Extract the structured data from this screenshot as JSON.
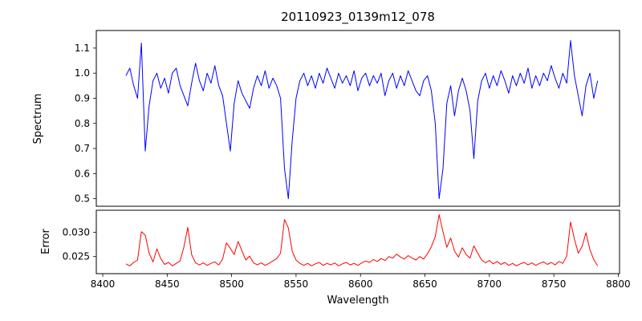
{
  "title": "20110923_0139m12_078",
  "colors": {
    "spectrum_line": "#0000ff",
    "error_line": "#ff0000",
    "axes": "#000000",
    "background": "#ffffff"
  },
  "chart_data": [
    {
      "type": "line",
      "name": "spectrum",
      "title": "20110923_0139m12_078",
      "ylabel": "Spectrum",
      "xlabel": "",
      "color": "#0000ff",
      "grid": false,
      "legend": "none",
      "xlim": [
        8395,
        8801
      ],
      "ylim": [
        0.47,
        1.17
      ],
      "yticks": [
        0.5,
        0.6,
        0.7,
        0.8,
        0.9,
        1.0,
        1.1
      ],
      "ytick_labels": [
        "0.5",
        "0.6",
        "0.7",
        "0.8",
        "0.9",
        "1.0",
        "1.1"
      ],
      "xticks": [],
      "xtick_labels": [],
      "x_start": 8418,
      "x_step": 3,
      "y": [
        0.99,
        1.02,
        0.95,
        0.9,
        1.12,
        0.69,
        0.87,
        0.97,
        1.0,
        0.94,
        0.98,
        0.92,
        1.0,
        1.02,
        0.95,
        0.91,
        0.87,
        0.96,
        1.04,
        0.97,
        0.93,
        1.0,
        0.96,
        1.03,
        0.95,
        0.91,
        0.8,
        0.69,
        0.88,
        0.97,
        0.92,
        0.89,
        0.86,
        0.94,
        0.99,
        0.95,
        1.01,
        0.94,
        0.98,
        0.95,
        0.9,
        0.62,
        0.5,
        0.73,
        0.9,
        0.97,
        1.0,
        0.95,
        0.99,
        0.94,
        1.0,
        0.96,
        1.02,
        0.98,
        0.94,
        1.0,
        0.96,
        0.99,
        0.95,
        1.01,
        0.93,
        0.98,
        1.0,
        0.95,
        0.99,
        0.96,
        1.0,
        0.91,
        0.97,
        1.0,
        0.94,
        0.99,
        0.95,
        1.01,
        0.97,
        0.93,
        0.91,
        0.97,
        0.99,
        0.93,
        0.8,
        0.5,
        0.62,
        0.88,
        0.95,
        0.83,
        0.93,
        0.98,
        0.93,
        0.85,
        0.66,
        0.89,
        0.97,
        1.0,
        0.94,
        0.99,
        0.95,
        1.01,
        0.97,
        0.92,
        0.99,
        0.95,
        1.0,
        0.96,
        1.02,
        0.94,
        0.99,
        0.95,
        1.0,
        0.97,
        1.03,
        0.98,
        0.94,
        1.0,
        0.96,
        1.13,
        0.99,
        0.91,
        0.83,
        0.95,
        1.0,
        0.9,
        0.97
      ]
    },
    {
      "type": "line",
      "name": "error",
      "ylabel": "Error",
      "xlabel": "Wavelength",
      "color": "#ff0000",
      "grid": false,
      "legend": "none",
      "xlim": [
        8395,
        8801
      ],
      "ylim": [
        0.0215,
        0.0345
      ],
      "yticks": [
        0.025,
        0.03
      ],
      "ytick_labels": [
        "0.025",
        "0.030"
      ],
      "xticks": [
        8400,
        8450,
        8500,
        8550,
        8600,
        8650,
        8700,
        8750,
        8800
      ],
      "xtick_labels": [
        "8400",
        "8450",
        "8500",
        "8550",
        "8600",
        "8650",
        "8700",
        "8750",
        "8800"
      ],
      "x_start": 8418,
      "x_step": 3,
      "y": [
        0.0235,
        0.0231,
        0.0238,
        0.0243,
        0.0301,
        0.0294,
        0.0257,
        0.0239,
        0.0266,
        0.0246,
        0.0234,
        0.0238,
        0.0231,
        0.0236,
        0.0241,
        0.027,
        0.031,
        0.0254,
        0.0237,
        0.0233,
        0.0237,
        0.0232,
        0.0236,
        0.0239,
        0.0233,
        0.0245,
        0.0278,
        0.0267,
        0.0254,
        0.0281,
        0.0262,
        0.0243,
        0.0251,
        0.0237,
        0.0233,
        0.0237,
        0.0232,
        0.0236,
        0.0241,
        0.0246,
        0.0257,
        0.0326,
        0.0309,
        0.0261,
        0.0243,
        0.0236,
        0.0232,
        0.0236,
        0.0231,
        0.0235,
        0.0238,
        0.0232,
        0.0236,
        0.0233,
        0.0237,
        0.0231,
        0.0235,
        0.0238,
        0.0233,
        0.0236,
        0.0232,
        0.0237,
        0.0241,
        0.0238,
        0.0244,
        0.024,
        0.0246,
        0.0242,
        0.025,
        0.0247,
        0.0255,
        0.0249,
        0.0245,
        0.0252,
        0.0247,
        0.0243,
        0.025,
        0.0245,
        0.0256,
        0.027,
        0.0291,
        0.0336,
        0.0301,
        0.0269,
        0.0288,
        0.0261,
        0.0249,
        0.0268,
        0.0254,
        0.0247,
        0.0272,
        0.0257,
        0.0243,
        0.0237,
        0.0242,
        0.0235,
        0.024,
        0.0234,
        0.0238,
        0.0232,
        0.0236,
        0.0231,
        0.0235,
        0.0238,
        0.0233,
        0.0237,
        0.0232,
        0.0236,
        0.0239,
        0.0234,
        0.0238,
        0.0233,
        0.024,
        0.0236,
        0.0251,
        0.0321,
        0.0286,
        0.0257,
        0.0271,
        0.0299,
        0.0264,
        0.0244,
        0.0231
      ]
    }
  ]
}
